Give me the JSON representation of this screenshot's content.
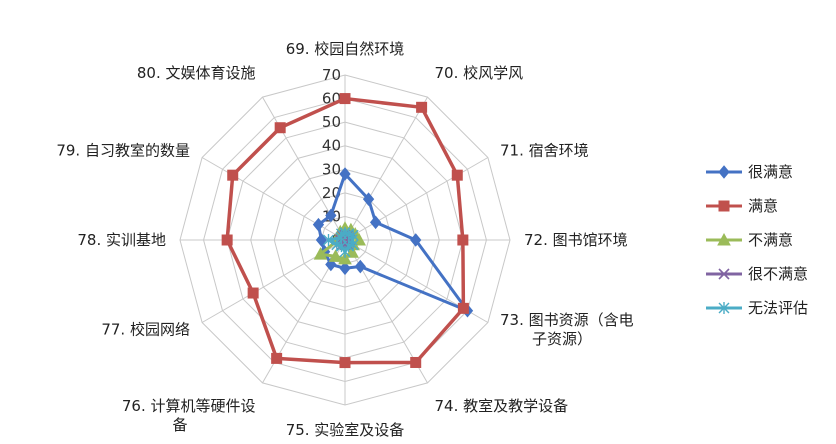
{
  "chart_data": {
    "type": "radar",
    "r_range": [
      0,
      70
    ],
    "ticks": [
      "0",
      "10",
      "20",
      "30",
      "40",
      "50",
      "60",
      "70"
    ],
    "categories": [
      "69. 校园自然环境",
      "70. 校风学风",
      "71. 宿舍环境",
      "72. 图书馆环境",
      "73. 图书资源（含电子资源）",
      "74. 教室及教学设备",
      "75. 实验室及设备",
      "76. 计算机等硬件设备",
      "77. 校园网络",
      "78. 实训基地",
      "79. 自习教室的数量",
      "80. 文娱体育设施"
    ],
    "category_lines": [
      [
        "69. 校园自然环境"
      ],
      [
        "70. 校风学风"
      ],
      [
        "71. 宿舍环境"
      ],
      [
        "72. 图书馆环境"
      ],
      [
        "73. 图书资源（含电",
        "子资源）"
      ],
      [
        "74. 教室及教学设备"
      ],
      [
        "75. 实验室及设备"
      ],
      [
        "76. 计算机等硬件设",
        "备"
      ],
      [
        "77. 校园网络"
      ],
      [
        "78. 实训基地"
      ],
      [
        "79. 自习教室的数量"
      ],
      [
        "80. 文娱体育设施"
      ]
    ],
    "grid": true,
    "legend_position": "right",
    "series": [
      {
        "name": "很满意",
        "color": "#4472C4",
        "marker": "diamond",
        "values": [
          28,
          20,
          15,
          30,
          60,
          13,
          12,
          12,
          10,
          10,
          13,
          12
        ]
      },
      {
        "name": "满意",
        "color": "#C0504D",
        "marker": "square",
        "values": [
          60,
          65,
          55,
          50,
          58,
          60,
          52,
          58,
          45,
          50,
          55,
          55
        ]
      },
      {
        "name": "不满意",
        "color": "#9BBB59",
        "marker": "triangle",
        "values": [
          5,
          5,
          5,
          6,
          4,
          6,
          8,
          8,
          12,
          3,
          3,
          4
        ]
      },
      {
        "name": "很不满意",
        "color": "#8064A2",
        "marker": "x",
        "values": [
          2,
          2,
          2,
          2,
          2,
          2,
          2,
          2,
          2,
          2,
          2,
          2
        ]
      },
      {
        "name": "无法评估",
        "color": "#4BACC6",
        "marker": "star",
        "values": [
          3,
          3,
          4,
          3,
          4,
          3,
          5,
          3,
          4,
          7,
          2,
          3
        ]
      }
    ]
  }
}
